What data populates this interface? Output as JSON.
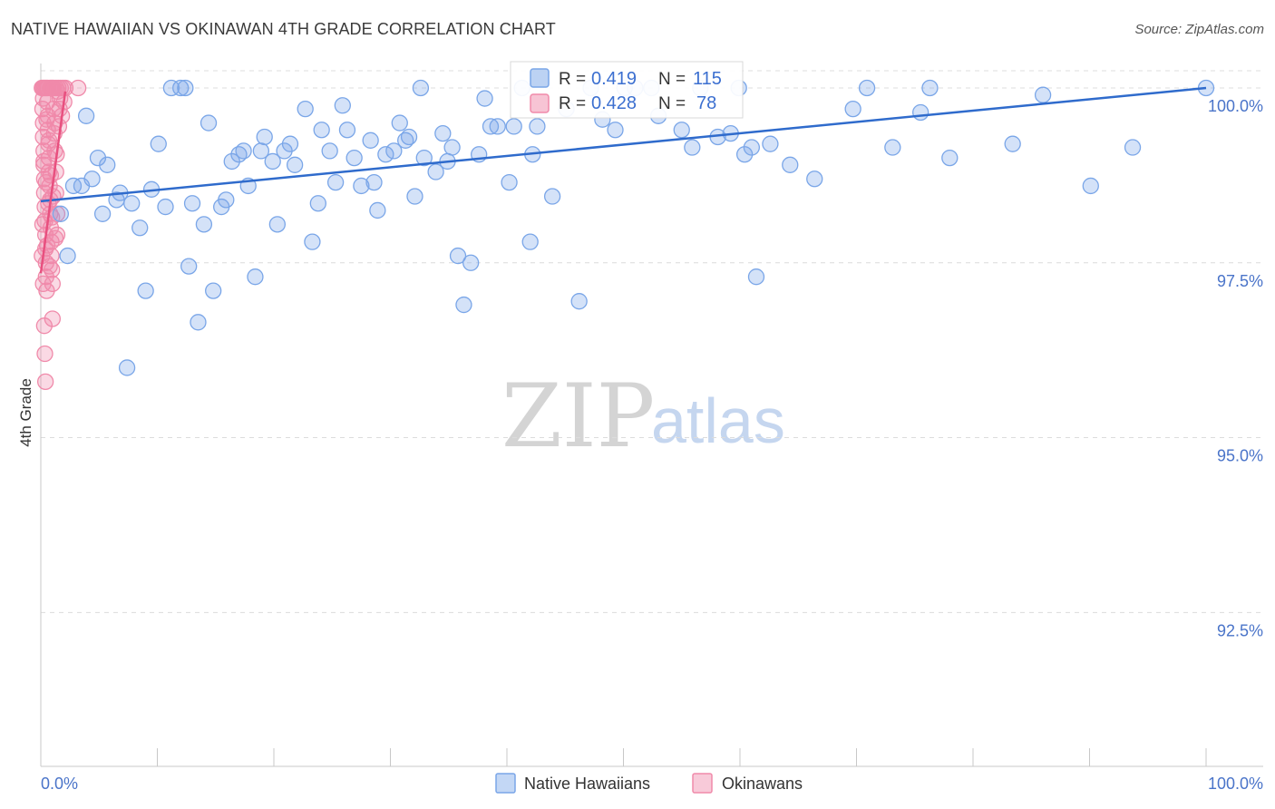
{
  "title": "NATIVE HAWAIIAN VS OKINAWAN 4TH GRADE CORRELATION CHART",
  "source": "Source: ZipAtlas.com",
  "watermark": {
    "zip": "ZIP",
    "atlas": "atlas"
  },
  "colors": {
    "blue": "#7aa6e8",
    "blue_line": "#2f6bcc",
    "pink": "#f08aaa",
    "pink_line": "#e8507f",
    "tick_text": "#4a74c9",
    "grid": "#dcdcdc"
  },
  "legend_box": {
    "rows": [
      {
        "r_label": "R =",
        "r_value": "0.419",
        "n_label": "N =",
        "n_value": "115"
      },
      {
        "r_label": "R =",
        "r_value": "0.428",
        "n_label": "N =",
        "n_value": "78"
      }
    ]
  },
  "chart_data": {
    "type": "scatter",
    "title": "NATIVE HAWAIIAN VS OKINAWAN 4TH GRADE CORRELATION CHART",
    "xlabel": "",
    "ylabel": "4th Grade",
    "xlim": [
      0,
      100
    ],
    "ylim": [
      90.3,
      100.35
    ],
    "x_tick_labels": [
      {
        "x": 0,
        "label": "0.0%"
      },
      {
        "x": 100,
        "label": "100.0%"
      }
    ],
    "y_ticks": [
      {
        "y": 100,
        "label": "100.0%"
      },
      {
        "y": 97.5,
        "label": "97.5%"
      },
      {
        "y": 95,
        "label": "95.0%"
      },
      {
        "y": 92.5,
        "label": "92.5%"
      }
    ],
    "series": [
      {
        "name": "Native Hawaiians",
        "color": "#7aa6e8",
        "r": 0.419,
        "n": 115,
        "trend": {
          "x0": 0,
          "y0": 98.38,
          "x1": 100,
          "y1": 100.0
        },
        "points": [
          [
            1.7,
            98.2
          ],
          [
            2.3,
            97.6
          ],
          [
            2.8,
            98.6
          ],
          [
            3.5,
            98.6
          ],
          [
            3.9,
            99.6
          ],
          [
            4.4,
            98.7
          ],
          [
            4.9,
            99.0
          ],
          [
            5.3,
            98.2
          ],
          [
            5.7,
            98.9
          ],
          [
            6.5,
            98.4
          ],
          [
            6.8,
            98.5
          ],
          [
            7.4,
            96.0
          ],
          [
            7.8,
            98.35
          ],
          [
            8.5,
            98.0
          ],
          [
            9.0,
            97.1
          ],
          [
            9.5,
            98.55
          ],
          [
            10.1,
            99.2
          ],
          [
            10.7,
            98.3
          ],
          [
            11.2,
            100.0
          ],
          [
            12.0,
            100.0
          ],
          [
            12.4,
            100.0
          ],
          [
            12.7,
            97.45
          ],
          [
            13.0,
            98.35
          ],
          [
            13.5,
            96.65
          ],
          [
            14.0,
            98.05
          ],
          [
            14.4,
            99.5
          ],
          [
            14.8,
            97.1
          ],
          [
            15.5,
            98.3
          ],
          [
            15.9,
            98.4
          ],
          [
            16.4,
            98.95
          ],
          [
            17.0,
            99.05
          ],
          [
            17.4,
            99.1
          ],
          [
            17.8,
            98.6
          ],
          [
            18.4,
            97.3
          ],
          [
            18.9,
            99.1
          ],
          [
            19.2,
            99.3
          ],
          [
            19.9,
            98.95
          ],
          [
            20.3,
            98.05
          ],
          [
            20.9,
            99.1
          ],
          [
            21.4,
            99.2
          ],
          [
            21.8,
            98.9
          ],
          [
            22.7,
            99.7
          ],
          [
            23.3,
            97.8
          ],
          [
            23.8,
            98.35
          ],
          [
            24.1,
            99.4
          ],
          [
            24.8,
            99.1
          ],
          [
            25.3,
            98.65
          ],
          [
            25.9,
            99.75
          ],
          [
            26.3,
            99.4
          ],
          [
            26.9,
            99.0
          ],
          [
            27.5,
            98.6
          ],
          [
            28.3,
            99.25
          ],
          [
            28.6,
            98.65
          ],
          [
            28.9,
            98.25
          ],
          [
            29.6,
            99.05
          ],
          [
            30.3,
            99.1
          ],
          [
            30.8,
            99.5
          ],
          [
            31.3,
            99.25
          ],
          [
            31.6,
            99.3
          ],
          [
            32.1,
            98.45
          ],
          [
            32.6,
            100.0
          ],
          [
            32.9,
            99.0
          ],
          [
            33.9,
            98.8
          ],
          [
            34.5,
            99.35
          ],
          [
            34.9,
            98.95
          ],
          [
            35.3,
            99.15
          ],
          [
            35.8,
            97.6
          ],
          [
            36.3,
            96.9
          ],
          [
            36.9,
            97.5
          ],
          [
            37.6,
            99.05
          ],
          [
            38.1,
            99.85
          ],
          [
            38.6,
            99.45
          ],
          [
            39.2,
            99.45
          ],
          [
            40.2,
            98.65
          ],
          [
            40.6,
            99.45
          ],
          [
            41.3,
            100.0
          ],
          [
            42.0,
            97.8
          ],
          [
            42.2,
            99.05
          ],
          [
            42.6,
            99.45
          ],
          [
            43.9,
            98.45
          ],
          [
            45.1,
            99.7
          ],
          [
            46.2,
            96.95
          ],
          [
            47.2,
            100.0
          ],
          [
            48.2,
            99.55
          ],
          [
            49.3,
            99.4
          ],
          [
            50.1,
            100.0
          ],
          [
            51.0,
            100.0
          ],
          [
            52.4,
            100.0
          ],
          [
            53.0,
            99.6
          ],
          [
            55.0,
            99.4
          ],
          [
            55.9,
            99.15
          ],
          [
            56.6,
            100.0
          ],
          [
            58.1,
            99.3
          ],
          [
            59.2,
            99.35
          ],
          [
            59.9,
            100.0
          ],
          [
            60.4,
            99.05
          ],
          [
            61.0,
            99.15
          ],
          [
            61.4,
            97.3
          ],
          [
            62.6,
            99.2
          ],
          [
            64.3,
            98.9
          ],
          [
            66.4,
            98.7
          ],
          [
            69.7,
            99.7
          ],
          [
            70.9,
            100.0
          ],
          [
            73.1,
            99.15
          ],
          [
            75.5,
            99.65
          ],
          [
            76.3,
            100.0
          ],
          [
            78.0,
            99.0
          ],
          [
            83.4,
            99.2
          ],
          [
            86.0,
            99.9
          ],
          [
            90.1,
            98.6
          ],
          [
            93.7,
            99.15
          ],
          [
            100.0,
            100.0
          ]
        ]
      },
      {
        "name": "Okinawans",
        "color": "#f08aaa",
        "r": 0.428,
        "n": 78,
        "trend": {
          "x0": 0,
          "y0": 97.35,
          "x1": 2.1,
          "y1": 99.95
        },
        "points": [
          [
            0.1,
            100.0
          ],
          [
            0.15,
            99.7
          ],
          [
            0.2,
            99.5
          ],
          [
            0.2,
            99.3
          ],
          [
            0.25,
            99.1
          ],
          [
            0.25,
            98.9
          ],
          [
            0.3,
            98.7
          ],
          [
            0.3,
            98.5
          ],
          [
            0.35,
            98.3
          ],
          [
            0.35,
            98.1
          ],
          [
            0.4,
            97.9
          ],
          [
            0.4,
            97.7
          ],
          [
            0.45,
            97.5
          ],
          [
            0.45,
            97.3
          ],
          [
            0.5,
            97.1
          ],
          [
            0.3,
            96.6
          ],
          [
            0.35,
            96.2
          ],
          [
            0.4,
            95.8
          ],
          [
            0.5,
            100.0
          ],
          [
            0.55,
            99.8
          ],
          [
            0.6,
            99.6
          ],
          [
            0.6,
            99.4
          ],
          [
            0.65,
            99.2
          ],
          [
            0.7,
            99.0
          ],
          [
            0.7,
            98.8
          ],
          [
            0.75,
            98.6
          ],
          [
            0.8,
            98.4
          ],
          [
            0.8,
            98.2
          ],
          [
            0.85,
            98.0
          ],
          [
            0.9,
            97.8
          ],
          [
            0.9,
            97.6
          ],
          [
            0.95,
            97.4
          ],
          [
            1.0,
            97.2
          ],
          [
            1.0,
            96.7
          ],
          [
            1.1,
            100.0
          ],
          [
            1.1,
            99.7
          ],
          [
            1.2,
            99.5
          ],
          [
            1.2,
            99.1
          ],
          [
            1.3,
            98.8
          ],
          [
            1.3,
            98.5
          ],
          [
            1.4,
            98.2
          ],
          [
            1.4,
            97.9
          ],
          [
            1.5,
            100.0
          ],
          [
            1.6,
            99.7
          ],
          [
            1.7,
            100.0
          ],
          [
            1.8,
            99.6
          ],
          [
            1.9,
            100.0
          ],
          [
            2.0,
            99.8
          ],
          [
            2.1,
            100.0
          ],
          [
            3.2,
            100.0
          ],
          [
            0.2,
            100.0
          ],
          [
            0.3,
            100.0
          ],
          [
            0.4,
            100.0
          ],
          [
            0.6,
            100.0
          ],
          [
            0.8,
            100.0
          ],
          [
            0.9,
            100.0
          ],
          [
            1.0,
            100.0
          ],
          [
            1.3,
            100.0
          ],
          [
            0.2,
            99.85
          ],
          [
            0.5,
            99.55
          ],
          [
            0.7,
            99.25
          ],
          [
            0.25,
            98.95
          ],
          [
            0.45,
            98.65
          ],
          [
            0.65,
            98.35
          ],
          [
            0.15,
            98.05
          ],
          [
            0.55,
            97.75
          ],
          [
            0.75,
            97.45
          ],
          [
            1.15,
            99.35
          ],
          [
            1.35,
            99.05
          ],
          [
            0.85,
            98.75
          ],
          [
            1.05,
            98.45
          ],
          [
            0.95,
            98.15
          ],
          [
            1.25,
            97.85
          ],
          [
            1.45,
            99.95
          ],
          [
            1.55,
            99.45
          ],
          [
            1.65,
            99.85
          ],
          [
            0.1,
            97.6
          ],
          [
            0.2,
            97.2
          ]
        ]
      }
    ],
    "legend": [
      "Native Hawaiians",
      "Okinawans"
    ],
    "legend_position": "bottom-center"
  }
}
